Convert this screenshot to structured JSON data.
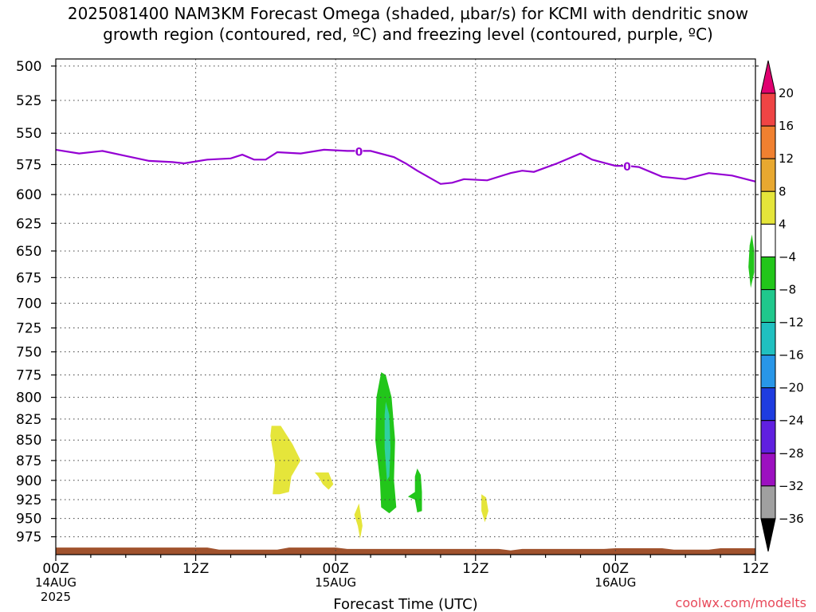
{
  "title_line1": "2025081400 NAM3KM Forecast Omega (shaded, µbar/s) for KCMI with dendritic snow",
  "title_line2": "growth region (contoured, red, ºC) and freezing level (contoured, purple, ºC)",
  "credit": "coolwx.com/modelts",
  "chart_data": {
    "type": "time-height cross section",
    "xlabel": "Forecast Time (UTC)",
    "ylabel": "",
    "x_ticks": [
      {
        "hour": 0,
        "label": "00Z",
        "date": "14AUG",
        "year": "2025"
      },
      {
        "hour": 12,
        "label": "12Z",
        "date": "",
        "year": ""
      },
      {
        "hour": 24,
        "label": "00Z",
        "date": "15AUG",
        "year": ""
      },
      {
        "hour": 36,
        "label": "12Z",
        "date": "",
        "year": ""
      },
      {
        "hour": 48,
        "label": "00Z",
        "date": "16AUG",
        "year": ""
      },
      {
        "hour": 60,
        "label": "12Z",
        "date": "",
        "year": ""
      }
    ],
    "xlim": [
      0,
      60
    ],
    "y_ticks": [
      500,
      525,
      550,
      575,
      600,
      625,
      650,
      675,
      700,
      725,
      750,
      775,
      800,
      825,
      850,
      875,
      900,
      925,
      950,
      975
    ],
    "ylim": [
      495,
      1000
    ],
    "y_log_scale": true,
    "grid": true,
    "freezing_level": {
      "color": "#9400d3",
      "label": "0",
      "label_hours": [
        26,
        49
      ],
      "points": [
        [
          0,
          563
        ],
        [
          2,
          566
        ],
        [
          4,
          564
        ],
        [
          6,
          568
        ],
        [
          8,
          572
        ],
        [
          10,
          573
        ],
        [
          11,
          574
        ],
        [
          13,
          571
        ],
        [
          15,
          570
        ],
        [
          16,
          567
        ],
        [
          17,
          571
        ],
        [
          18,
          571
        ],
        [
          19,
          565
        ],
        [
          21,
          566
        ],
        [
          23,
          563
        ],
        [
          25,
          564
        ],
        [
          27,
          564
        ],
        [
          29,
          569
        ],
        [
          30,
          574
        ],
        [
          31,
          580
        ],
        [
          33,
          591
        ],
        [
          34,
          590
        ],
        [
          35,
          587
        ],
        [
          37,
          588
        ],
        [
          39,
          582
        ],
        [
          40,
          580
        ],
        [
          41,
          581
        ],
        [
          43,
          574
        ],
        [
          45,
          566
        ],
        [
          46,
          571
        ],
        [
          48,
          576
        ],
        [
          49,
          576
        ],
        [
          50,
          577
        ],
        [
          52,
          585
        ],
        [
          54,
          587
        ],
        [
          56,
          582
        ],
        [
          58,
          584
        ],
        [
          60,
          589
        ]
      ]
    },
    "surface_terrain": {
      "color": "#a0522d",
      "top_pressure_hpa": [
        [
          0,
          990
        ],
        [
          13,
          990
        ],
        [
          14,
          993
        ],
        [
          19,
          993
        ],
        [
          20,
          990
        ],
        [
          24,
          990
        ],
        [
          25,
          992
        ],
        [
          38,
          992
        ],
        [
          39,
          994
        ],
        [
          40,
          992
        ],
        [
          47,
          992
        ],
        [
          48,
          991
        ],
        [
          52,
          991
        ],
        [
          53,
          993
        ],
        [
          56,
          993
        ],
        [
          57,
          991
        ],
        [
          60,
          991
        ]
      ]
    },
    "omega_regions": [
      {
        "color": "#e5e53a",
        "points": [
          [
            18.5,
            833
          ],
          [
            19.3,
            833
          ],
          [
            20.3,
            855
          ],
          [
            21.0,
            875
          ],
          [
            20.2,
            895
          ],
          [
            20.0,
            915
          ],
          [
            19.2,
            918
          ],
          [
            18.6,
            918
          ],
          [
            18.8,
            880
          ],
          [
            18.4,
            845
          ]
        ]
      },
      {
        "color": "#e5e53a",
        "points": [
          [
            22.2,
            890
          ],
          [
            23.4,
            890
          ],
          [
            23.8,
            905
          ],
          [
            23.4,
            912
          ],
          [
            22.9,
            905
          ],
          [
            22.5,
            895
          ]
        ]
      },
      {
        "color": "#e5e53a",
        "points": [
          [
            26.0,
            930
          ],
          [
            26.3,
            960
          ],
          [
            26.1,
            978
          ],
          [
            25.9,
            960
          ],
          [
            25.6,
            945
          ]
        ]
      },
      {
        "color": "#e5e53a",
        "points": [
          [
            36.5,
            918
          ],
          [
            36.9,
            922
          ],
          [
            37.1,
            940
          ],
          [
            36.8,
            955
          ],
          [
            36.5,
            940
          ]
        ]
      },
      {
        "color": "#22c61a",
        "points": [
          [
            27.9,
            772
          ],
          [
            28.3,
            775
          ],
          [
            28.8,
            800
          ],
          [
            29.1,
            850
          ],
          [
            29.0,
            900
          ],
          [
            29.2,
            935
          ],
          [
            28.6,
            943
          ],
          [
            27.9,
            935
          ],
          [
            27.8,
            900
          ],
          [
            27.4,
            850
          ],
          [
            27.5,
            800
          ]
        ]
      },
      {
        "color": "#30d0a0",
        "points": [
          [
            28.3,
            805
          ],
          [
            28.6,
            820
          ],
          [
            28.7,
            860
          ],
          [
            28.6,
            895
          ],
          [
            28.4,
            900
          ],
          [
            28.2,
            860
          ],
          [
            28.2,
            820
          ]
        ]
      },
      {
        "color": "#22c61a",
        "points": [
          [
            31.0,
            885
          ],
          [
            31.3,
            893
          ],
          [
            31.4,
            915
          ],
          [
            31.4,
            940
          ],
          [
            31.0,
            942
          ],
          [
            30.8,
            925
          ],
          [
            30.2,
            921
          ],
          [
            30.8,
            915
          ],
          [
            30.8,
            895
          ]
        ]
      },
      {
        "color": "#22c61a",
        "points": [
          [
            59.7,
            635
          ],
          [
            59.9,
            650
          ],
          [
            59.9,
            670
          ],
          [
            59.6,
            685
          ],
          [
            59.4,
            665
          ],
          [
            59.5,
            645
          ]
        ]
      }
    ],
    "colorbar": {
      "colors": [
        "#e00070",
        "#ef4444",
        "#f08030",
        "#e8a830",
        "#e5e53a",
        "#ffffff",
        "#22c61a",
        "#20c88c",
        "#20c0c0",
        "#2896e8",
        "#1e3ce0",
        "#6020e0",
        "#9c10c0",
        "#a0a0a0",
        "#000000"
      ],
      "labels": [
        "20",
        "16",
        "12",
        "8",
        "4",
        "−4",
        "−8",
        "−12",
        "−16",
        "−20",
        "−24",
        "−28",
        "−32",
        "−36"
      ]
    }
  }
}
